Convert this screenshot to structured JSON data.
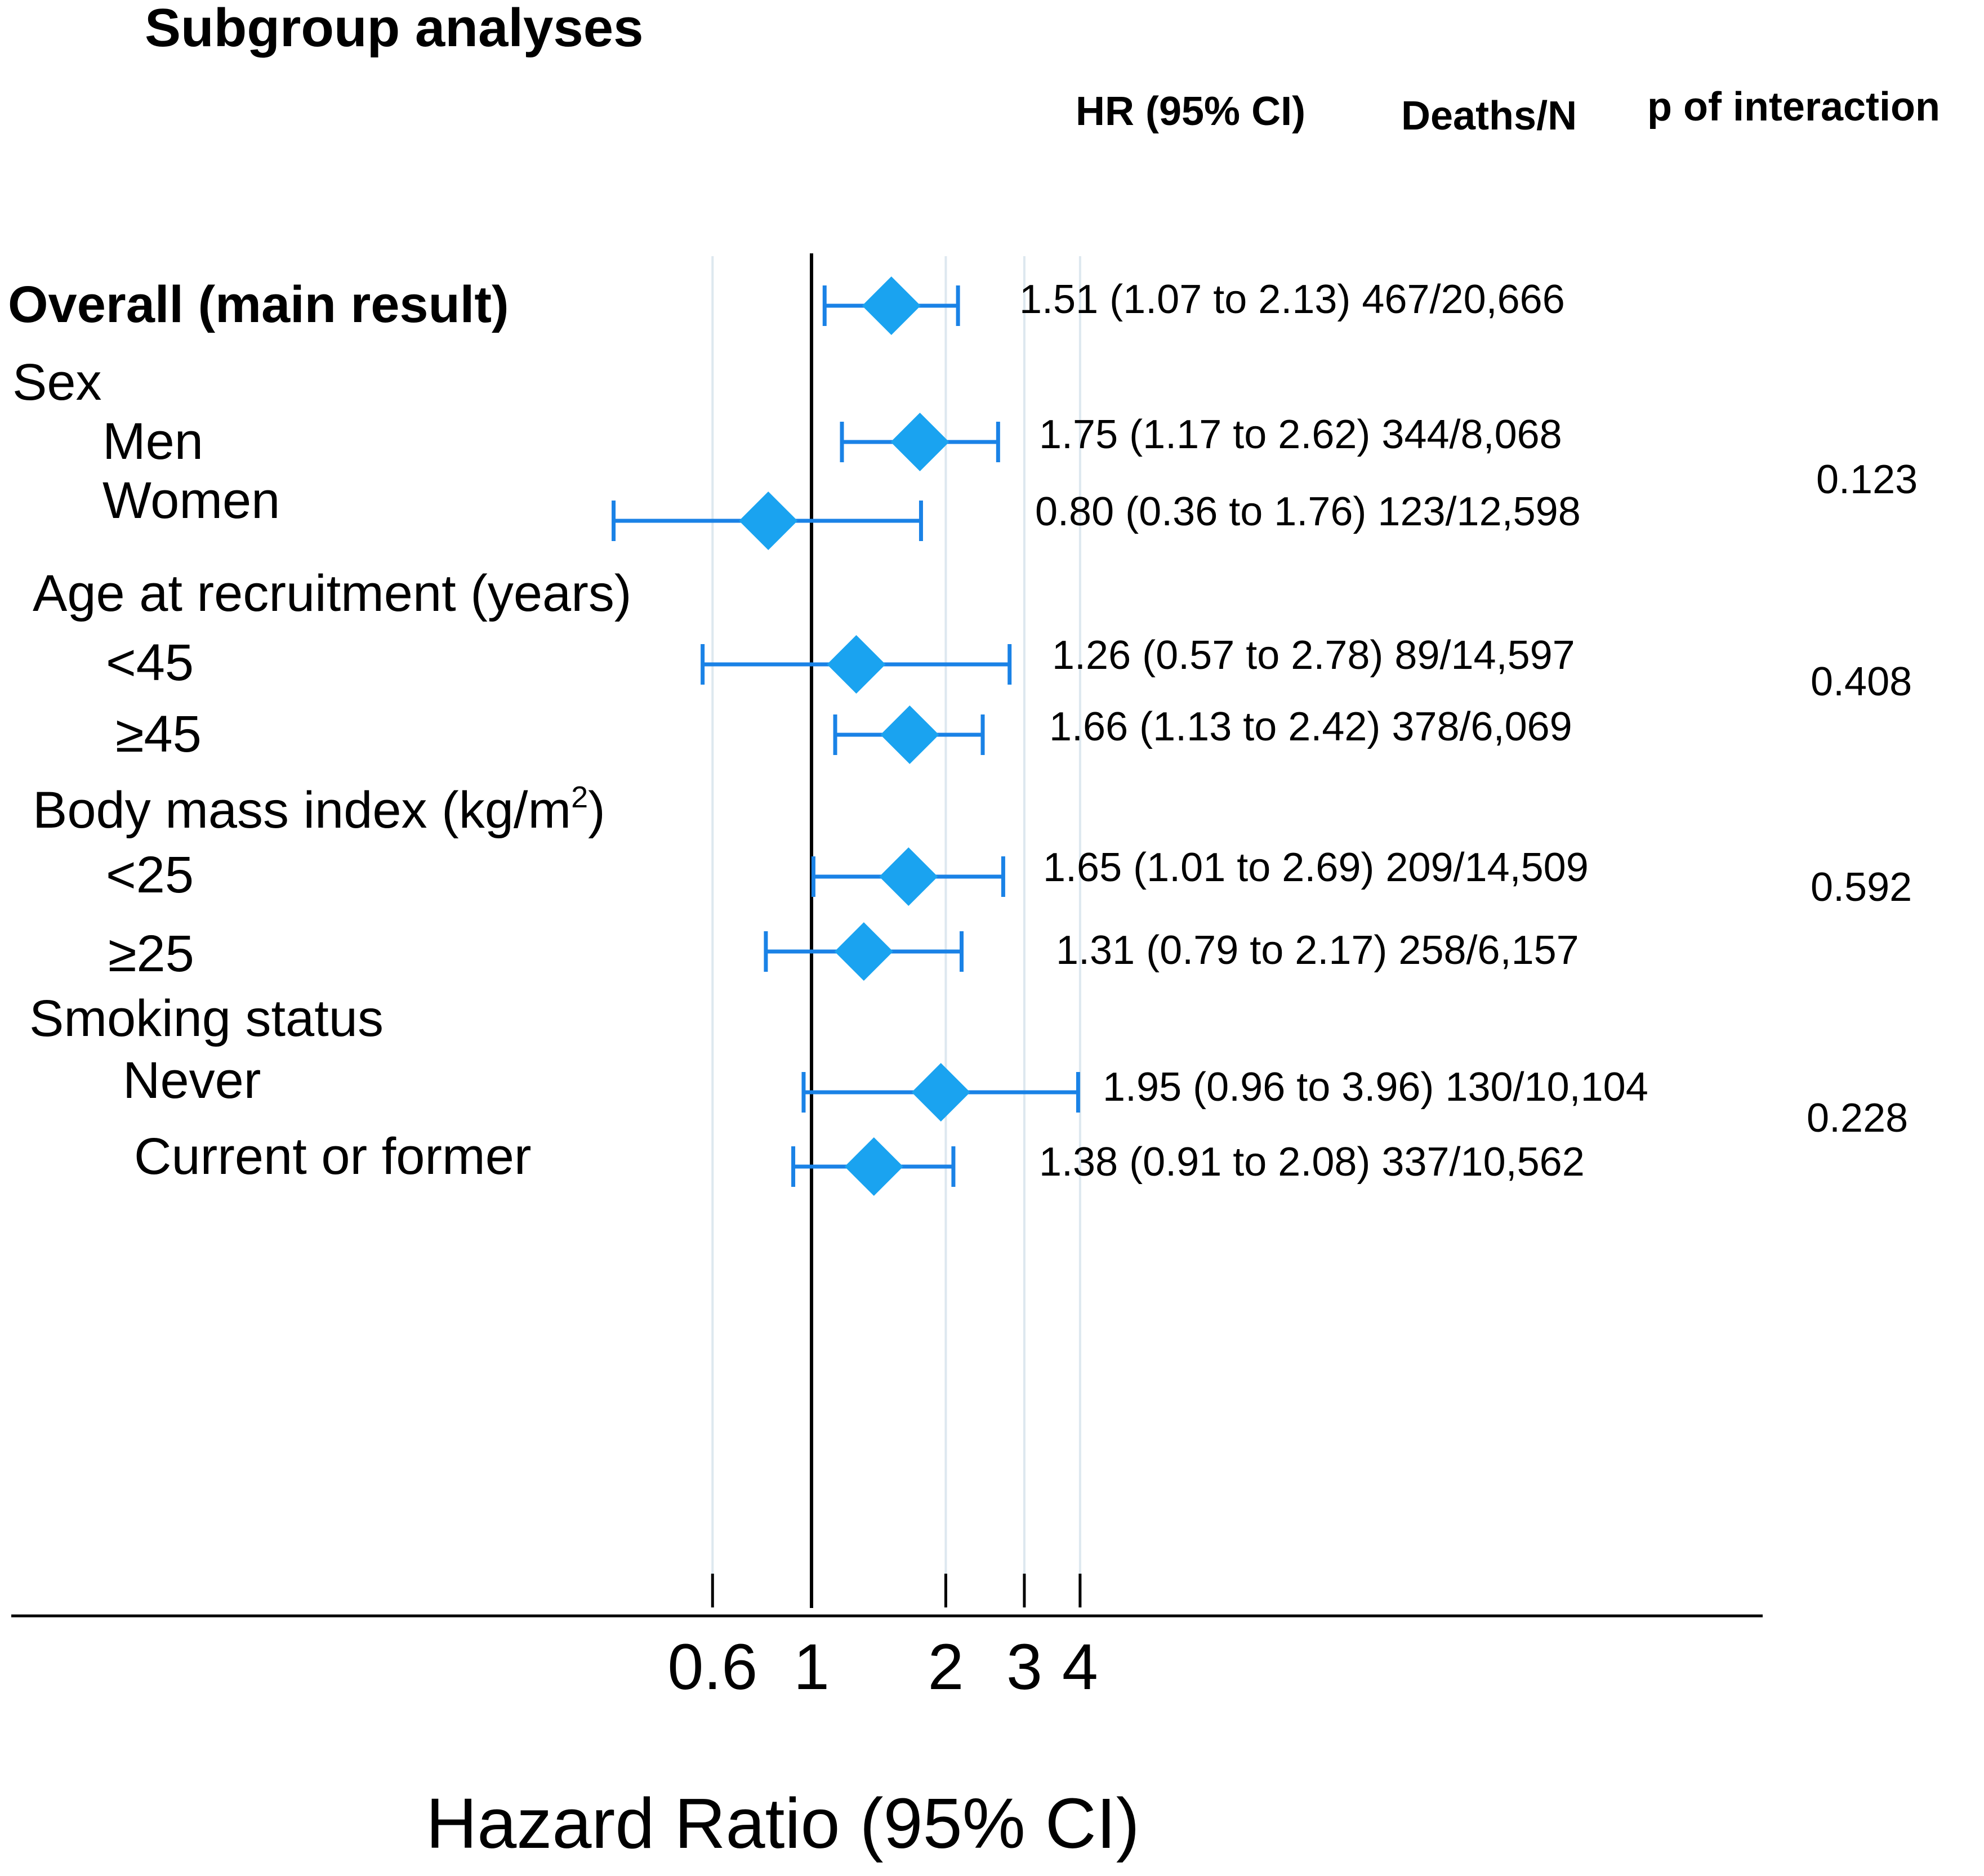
{
  "chart_data": {
    "type": "forest",
    "title": "Subgroup analyses",
    "xlabel": "Hazard Ratio (95% CI)",
    "x_scale": "log",
    "xlim": [
      0.46,
      5.0
    ],
    "reference_line": 1,
    "ticks": [
      {
        "value": 0.6,
        "label": "0.6"
      },
      {
        "value": 1,
        "label": "1"
      },
      {
        "value": 2,
        "label": "2"
      },
      {
        "value": 3,
        "label": "3"
      },
      {
        "value": 4,
        "label": "4"
      }
    ],
    "gridlines": [
      0.6,
      2,
      3,
      4
    ],
    "columns": {
      "hr": "HR (95% CI)",
      "deaths": "Deaths/N",
      "p": "p of interaction"
    },
    "marker_color": "#1aa3f0",
    "ci_color": "#1a82e6",
    "groups": [
      {
        "label": "Sex",
        "p_interaction": "0.123"
      },
      {
        "label": "Age at recruitment (years)",
        "p_interaction": "0.408"
      },
      {
        "label": "Body mass index (kg/m",
        "label_sup": "2",
        "label_end": ")",
        "p_interaction": "0.592"
      },
      {
        "label": "Smoking status",
        "p_interaction": "0.228"
      }
    ],
    "rows": [
      {
        "label": "Overall (main result)",
        "hr": 1.51,
        "lower": 1.07,
        "upper": 2.13,
        "text": "1.51 (1.07 to 2.13) 467/20,666"
      },
      {
        "label": "Men",
        "hr": 1.75,
        "lower": 1.17,
        "upper": 2.62,
        "text": "1.75 (1.17 to 2.62) 344/8,068"
      },
      {
        "label": "Women",
        "hr": 0.8,
        "lower": 0.36,
        "upper": 1.76,
        "text": "0.80 (0.36 to 1.76) 123/12,598"
      },
      {
        "label": "<45",
        "hr": 1.26,
        "lower": 0.57,
        "upper": 2.78,
        "text": "1.26 (0.57 to 2.78) 89/14,597"
      },
      {
        "label": "≥45",
        "hr": 1.66,
        "lower": 1.13,
        "upper": 2.42,
        "text": "1.66 (1.13 to 2.42) 378/6,069"
      },
      {
        "label": "<25",
        "hr": 1.65,
        "lower": 1.01,
        "upper": 2.69,
        "text": "1.65 (1.01 to 2.69) 209/14,509"
      },
      {
        "label": "≥25",
        "hr": 1.31,
        "lower": 0.79,
        "upper": 2.17,
        "text": "1.31 (0.79 to 2.17) 258/6,157"
      },
      {
        "label": "Never",
        "hr": 1.95,
        "lower": 0.96,
        "upper": 3.96,
        "text": "1.95 (0.96 to 3.96) 130/10,104"
      },
      {
        "label": "Current or former",
        "hr": 1.38,
        "lower": 0.91,
        "upper": 2.08,
        "text": "1.38 (0.91 to 2.08) 337/10,562"
      }
    ]
  }
}
